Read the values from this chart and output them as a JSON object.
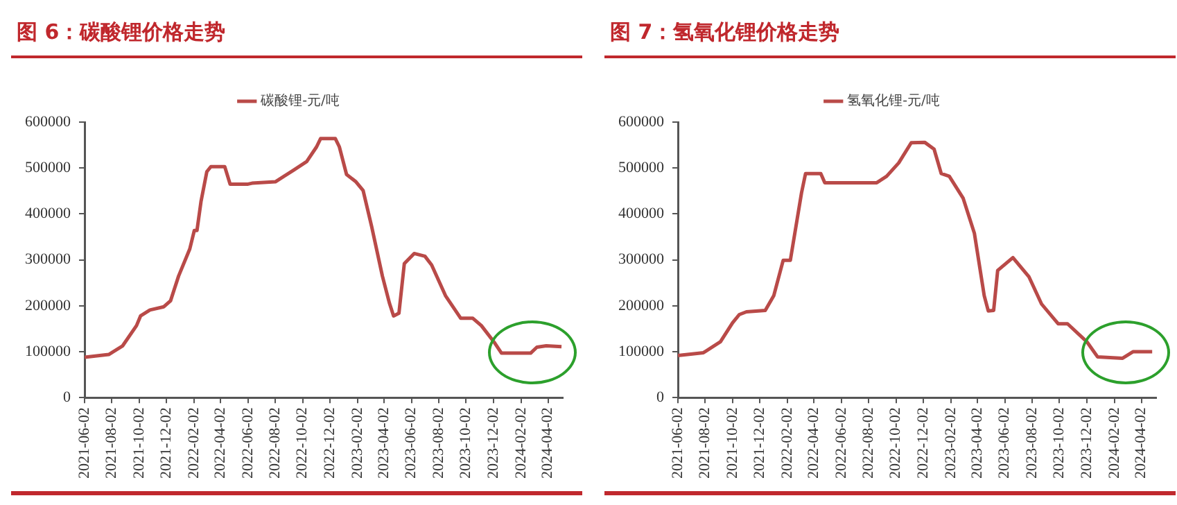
{
  "chart_data": [
    {
      "type": "line",
      "title": "图 6：碳酸锂价格走势",
      "legend": "top",
      "grid": false,
      "marker": "none",
      "line_style": "solid",
      "xlim": [
        "2021-06-02",
        "2024-05-05"
      ],
      "ylim": [
        0,
        600000
      ],
      "yticks": [
        0,
        100000,
        200000,
        300000,
        400000,
        500000,
        600000
      ],
      "xticks": [
        "2021-06-02",
        "2021-08-02",
        "2021-10-02",
        "2021-12-02",
        "2022-02-02",
        "2022-04-02",
        "2022-06-02",
        "2022-08-02",
        "2022-10-02",
        "2022-12-02",
        "2023-02-02",
        "2023-04-02",
        "2023-06-02",
        "2023-08-02",
        "2023-10-02",
        "2023-12-02",
        "2024-02-02",
        "2024-04-02"
      ],
      "series": [
        {
          "name": "碳酸锂-元/吨",
          "color": "#b94a48",
          "x": [
            "2021-06-02",
            "2021-07-26",
            "2021-08-26",
            "2021-09-26",
            "2021-10-05",
            "2021-10-26",
            "2021-11-26",
            "2021-12-11",
            "2021-12-29",
            "2022-01-23",
            "2022-02-02",
            "2022-02-08",
            "2022-02-17",
            "2022-03-02",
            "2022-03-11",
            "2022-04-11",
            "2022-04-23",
            "2022-06-02",
            "2022-06-11",
            "2022-08-02",
            "2022-09-11",
            "2022-10-11",
            "2022-11-02",
            "2022-11-11",
            "2022-12-14",
            "2022-12-23",
            "2023-01-08",
            "2023-01-29",
            "2023-02-14",
            "2023-03-05",
            "2023-03-29",
            "2023-04-14",
            "2023-04-23",
            "2023-05-05",
            "2023-05-17",
            "2023-06-08",
            "2023-07-02",
            "2023-07-17",
            "2023-08-17",
            "2023-09-20",
            "2023-10-17",
            "2023-11-05",
            "2023-12-05",
            "2023-12-20",
            "2024-02-23",
            "2024-03-08",
            "2024-03-29",
            "2024-05-02"
          ],
          "values": [
            88000,
            94000,
            113000,
            157000,
            178000,
            191000,
            198000,
            211000,
            265000,
            324000,
            364000,
            364000,
            427000,
            492000,
            503000,
            503000,
            465000,
            465000,
            467000,
            470000,
            495000,
            514000,
            546000,
            564000,
            564000,
            546000,
            486000,
            470000,
            451000,
            373000,
            265000,
            205000,
            178000,
            184000,
            292000,
            314000,
            308000,
            289000,
            222000,
            173000,
            173000,
            157000,
            119000,
            97000,
            97000,
            110000,
            113000,
            111000
          ]
        }
      ]
    },
    {
      "type": "line",
      "title": "图 7：氢氧化锂价格走势",
      "legend": "top",
      "grid": false,
      "marker": "none",
      "line_style": "solid",
      "xlim": [
        "2021-06-02",
        "2024-05-05"
      ],
      "ylim": [
        0,
        600000
      ],
      "yticks": [
        0,
        100000,
        200000,
        300000,
        400000,
        500000,
        600000
      ],
      "xticks": [
        "2021-06-02",
        "2021-08-02",
        "2021-10-02",
        "2021-12-02",
        "2022-02-02",
        "2022-04-02",
        "2022-06-02",
        "2022-08-02",
        "2022-10-02",
        "2022-12-02",
        "2023-02-02",
        "2023-04-02",
        "2023-06-02",
        "2023-08-02",
        "2023-10-02",
        "2023-12-02",
        "2024-02-02",
        "2024-04-02"
      ],
      "series": [
        {
          "name": "氢氧化锂-元/吨",
          "color": "#b94a48",
          "x": [
            "2021-06-02",
            "2021-07-29",
            "2021-09-05",
            "2021-10-02",
            "2021-10-17",
            "2021-11-02",
            "2021-12-14",
            "2022-01-02",
            "2022-01-23",
            "2022-02-08",
            "2022-03-05",
            "2022-03-14",
            "2022-04-17",
            "2022-04-26",
            "2022-08-20",
            "2022-09-11",
            "2022-10-08",
            "2022-11-05",
            "2022-12-05",
            "2022-12-26",
            "2023-01-11",
            "2023-01-29",
            "2023-03-01",
            "2023-03-26",
            "2023-04-17",
            "2023-04-26",
            "2023-05-08",
            "2023-05-17",
            "2023-06-20",
            "2023-07-26",
            "2023-08-23",
            "2023-09-29",
            "2023-10-20",
            "2023-12-02",
            "2023-12-26",
            "2024-02-20",
            "2024-03-14",
            "2024-04-26"
          ],
          "values": [
            92000,
            98000,
            122000,
            163000,
            181000,
            187000,
            190000,
            222000,
            299000,
            299000,
            446000,
            488000,
            488000,
            468000,
            468000,
            482000,
            511000,
            555000,
            556000,
            541000,
            488000,
            482000,
            434000,
            358000,
            222000,
            189000,
            190000,
            277000,
            305000,
            263000,
            204000,
            161000,
            161000,
            122000,
            89000,
            86000,
            100000,
            100000
          ]
        }
      ]
    }
  ]
}
